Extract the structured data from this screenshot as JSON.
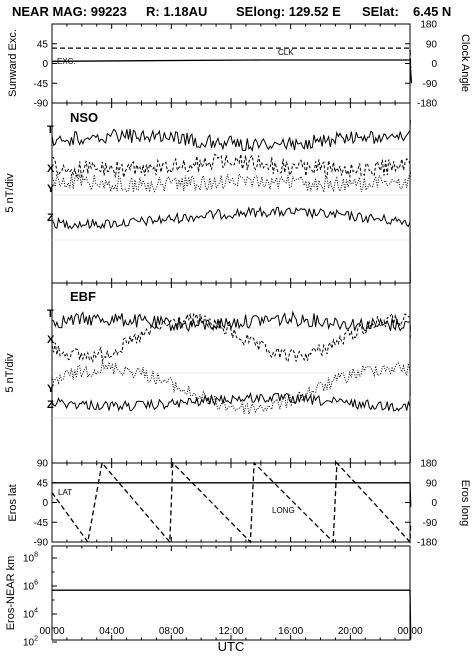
{
  "header": {
    "title": "NEAR MAG: 99223",
    "radius": "R: 1.18AU",
    "selong": "SElong: 129.52 E",
    "selat": "SElat:",
    "selat_value": "6.45 N"
  },
  "chart_data": [
    {
      "type": "line",
      "panel": "sunward",
      "ylabel_left": "Sunward Exc.",
      "ylabel_right": "Clock Angle",
      "left_ticks": [
        "45",
        "0",
        "-45",
        "-90"
      ],
      "right_ticks": [
        "180",
        "90",
        "0",
        "-90",
        "-180"
      ],
      "ylim_left": [
        -90,
        90
      ],
      "ylim_right": [
        -180,
        180
      ],
      "annotations": [
        "EXC.",
        "CLK"
      ],
      "series": [
        {
          "name": "EXC.",
          "style": "solid",
          "x": [
            0,
            14,
            24,
            24.05,
            24.1
          ],
          "y": [
            5,
            8,
            8,
            -20,
            -45
          ]
        },
        {
          "name": "CLK",
          "style": "dashed",
          "x": [
            0,
            24,
            24.05
          ],
          "y": [
            70,
            70,
            -20
          ]
        }
      ]
    },
    {
      "type": "line",
      "panel": "NSO",
      "title": "NSO",
      "ylabel_left": "5 nT/div",
      "series_labels": [
        "T",
        "X",
        "Y",
        "Z"
      ]
    },
    {
      "type": "line",
      "panel": "EBF",
      "title": "EBF",
      "ylabel_left": "5 nT/div",
      "series_labels": [
        "T",
        "X",
        "Y",
        "Z"
      ]
    },
    {
      "type": "line",
      "panel": "eros",
      "ylabel_left": "Eros lat",
      "ylabel_right": "Eros long",
      "left_ticks": [
        "90",
        "45",
        "0",
        "-45",
        "-90"
      ],
      "right_ticks": [
        "180",
        "90",
        "0",
        "-90",
        "-180"
      ],
      "ylim_left": [
        -90,
        90
      ],
      "ylim_right": [
        -180,
        180
      ],
      "annotations": [
        "LAT",
        "LONG"
      ],
      "series": [
        {
          "name": "LAT",
          "style": "solid",
          "x": [
            0,
            24,
            24.05
          ],
          "y": [
            45,
            45,
            -10
          ]
        },
        {
          "name": "LONG",
          "style": "dashed",
          "x": [
            0,
            2.4,
            3.35,
            7.9,
            8.1,
            13.3,
            13.55,
            18.85,
            19.1,
            24,
            24.05
          ],
          "y": [
            45,
            -180,
            180,
            -180,
            180,
            -180,
            180,
            -180,
            180,
            -180,
            -90
          ]
        }
      ]
    },
    {
      "type": "line",
      "panel": "distance",
      "ylabel_left": "Eros-NEAR km",
      "ylog": true,
      "left_ticks": [
        "10^8",
        "10^6",
        "10^4",
        "10^2"
      ],
      "series": [
        {
          "name": "Eros-NEAR km",
          "style": "solid",
          "x": [
            0,
            24,
            24.05
          ],
          "y": [
            500000,
            500000,
            150
          ]
        }
      ]
    }
  ],
  "time_axis": {
    "ticks": [
      "00:00",
      "04:00",
      "08:00",
      "12:00",
      "16:00",
      "20:00",
      "00:00"
    ],
    "label": "UTC"
  }
}
